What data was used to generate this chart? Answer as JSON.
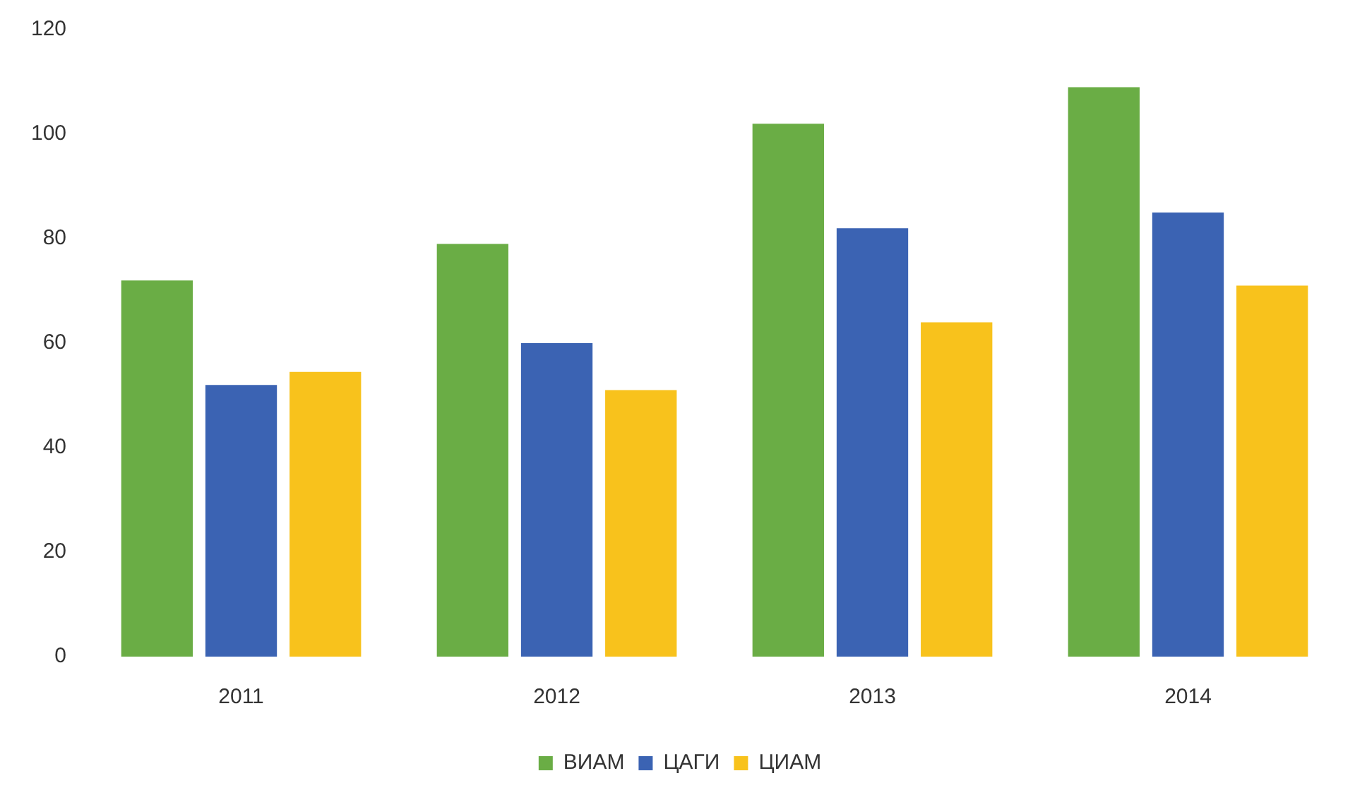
{
  "chart_data": {
    "type": "bar",
    "categories": [
      "2011",
      "2012",
      "2013",
      "2014"
    ],
    "series": [
      {
        "name": "ВИАМ",
        "color": "#6aad45",
        "values": [
          72,
          79,
          102,
          109
        ]
      },
      {
        "name": "ЦАГИ",
        "color": "#3b63b3",
        "values": [
          52,
          60,
          82,
          85
        ]
      },
      {
        "name": "ЦИАМ",
        "color": "#f8c21c",
        "values": [
          54.5,
          51,
          64,
          71
        ]
      }
    ],
    "ylim": [
      0,
      120
    ],
    "yticks": [
      0,
      20,
      40,
      60,
      80,
      100,
      120
    ],
    "grid": false,
    "legend": "bottom"
  }
}
